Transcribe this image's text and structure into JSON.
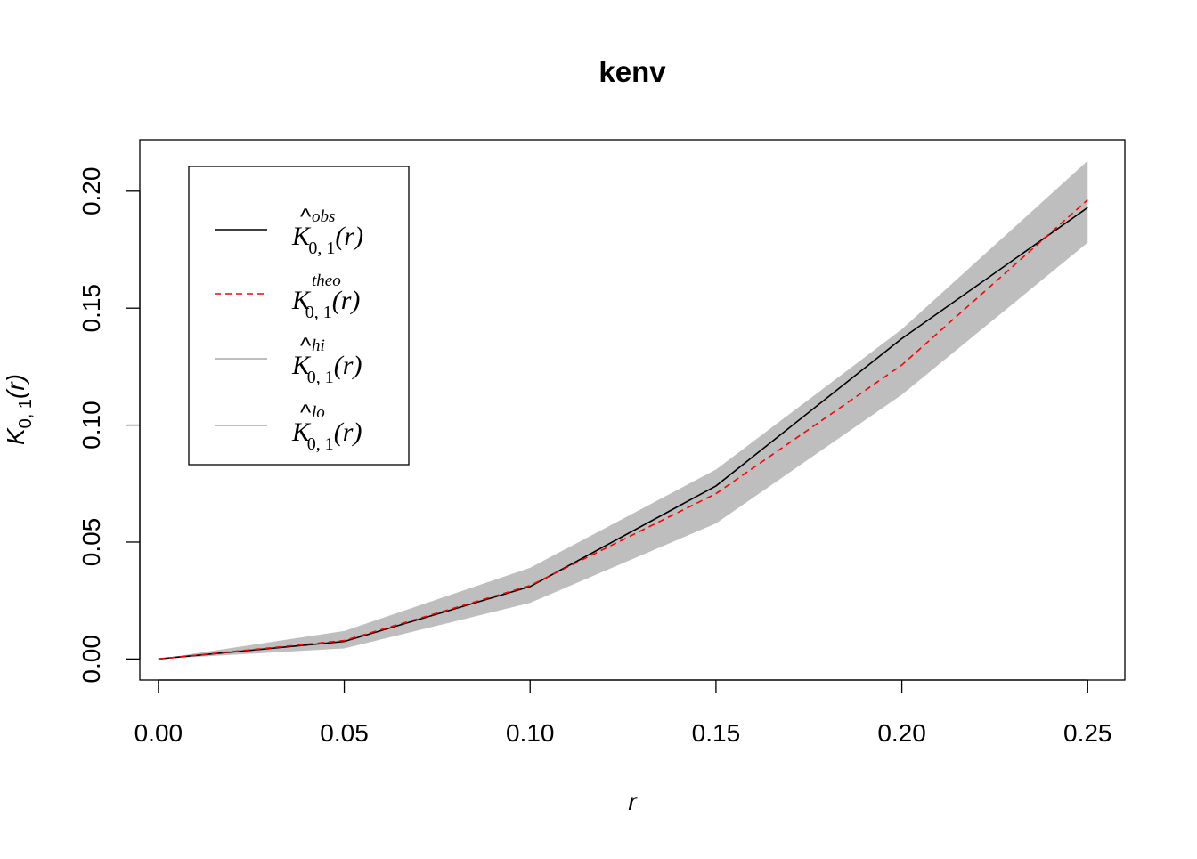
{
  "chart_data": {
    "type": "line",
    "title": "kenv",
    "xlabel": "r",
    "ylabel": "K_{0,1}(r)",
    "xlim": [
      -0.005,
      0.26
    ],
    "ylim": [
      -0.009,
      0.222
    ],
    "x_ticks": [
      "0.00",
      "0.05",
      "0.10",
      "0.15",
      "0.20",
      "0.25"
    ],
    "y_ticks": [
      "0.00",
      "0.05",
      "0.10",
      "0.15",
      "0.20"
    ],
    "grid": false,
    "legend_position": "top-left",
    "x": [
      0.0,
      0.05,
      0.1,
      0.15,
      0.2,
      0.25
    ],
    "series": [
      {
        "name": "obs",
        "label": "K̂obs 0,1 (r)",
        "color": "#000000",
        "dash": "solid",
        "values": [
          0.0,
          0.0075,
          0.031,
          0.074,
          0.137,
          0.193
        ]
      },
      {
        "name": "theo",
        "label": "Ktheo 0,1 (r)",
        "color": "#ff0000",
        "dash": "dashed",
        "values": [
          0.0,
          0.0079,
          0.0314,
          0.0707,
          0.1257,
          0.1963
        ]
      },
      {
        "name": "hi",
        "label": "K̂hi 0,1 (r)",
        "color": "#bebebe",
        "dash": "solid",
        "values": [
          0.0,
          0.012,
          0.039,
          0.081,
          0.141,
          0.213
        ]
      },
      {
        "name": "lo",
        "label": "K̂lo 0,1 (r)",
        "color": "#bebebe",
        "dash": "solid",
        "values": [
          0.0,
          0.0045,
          0.024,
          0.058,
          0.113,
          0.178
        ]
      }
    ],
    "envelope_color": "#bebebe",
    "legend": [
      {
        "sup": "obs",
        "sub": "0, 1",
        "color": "#000000",
        "dash": "solid",
        "hat": true
      },
      {
        "sup": "theo",
        "sub": "0, 1",
        "color": "#ff0000",
        "dash": "dashed",
        "hat": false
      },
      {
        "sup": "hi",
        "sub": "0, 1",
        "color": "#bebebe",
        "dash": "solid",
        "hat": true
      },
      {
        "sup": "lo",
        "sub": "0, 1",
        "color": "#bebebe",
        "dash": "solid",
        "hat": true
      }
    ],
    "ylabel_sub": "0, 1"
  }
}
